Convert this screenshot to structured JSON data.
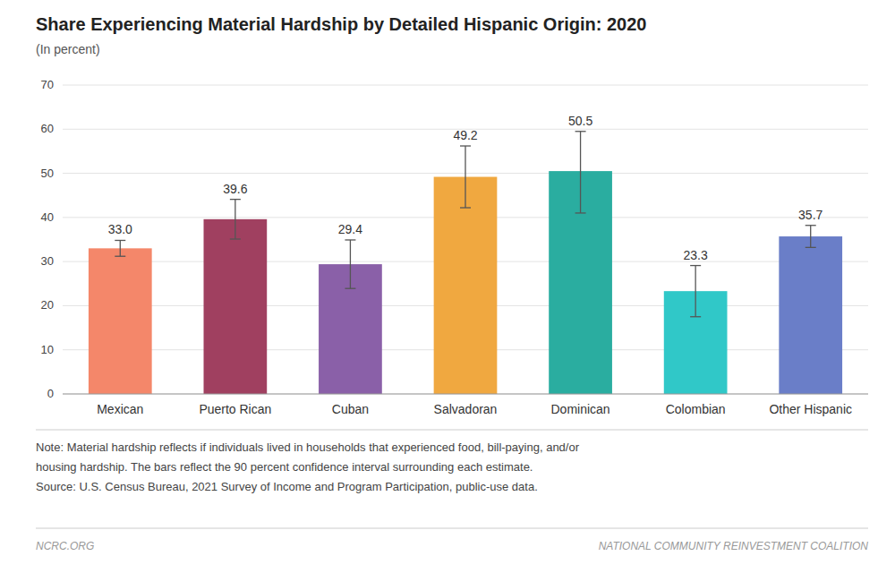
{
  "chart_data": {
    "type": "bar",
    "title": "Share Experiencing Material Hardship by Detailed Hispanic Origin: 2020",
    "subtitle": "(In percent)",
    "categories": [
      "Mexican",
      "Puerto Rican",
      "Cuban",
      "Salvadoran",
      "Dominican",
      "Colombian",
      "Other Hispanic"
    ],
    "values": [
      33.0,
      39.6,
      29.4,
      49.2,
      50.5,
      23.3,
      35.7
    ],
    "value_labels": [
      "33.0",
      "39.6",
      "29.4",
      "49.2",
      "50.5",
      "23.3",
      "35.7"
    ],
    "error_lower": [
      1.8,
      4.5,
      5.5,
      7.0,
      9.5,
      5.8,
      2.5
    ],
    "error_upper": [
      1.8,
      4.5,
      5.5,
      7.0,
      9.0,
      5.8,
      2.5
    ],
    "colors": [
      "#F4876A",
      "#A04060",
      "#8A60A8",
      "#F0A840",
      "#2AADA0",
      "#30C8C8",
      "#6A7EC8"
    ],
    "ylim": [
      0,
      70
    ],
    "yticks": [
      0,
      10,
      20,
      30,
      40,
      50,
      60,
      70
    ],
    "grid": true,
    "data_labels": true,
    "notes": [
      "Note: Material hardship reflects if individuals lived in households that experienced food, bill-paying, and/or",
      "housing hardship. The bars reflect the 90 percent confidence interval surrounding each estimate.",
      "Source: U.S. Census Bureau, 2021 Survey of Income and Program Participation, public-use data."
    ],
    "footer": [
      "NCRC.ORG",
      "NATIONAL COMMUNITY REINVESTMENT COALITION"
    ]
  }
}
